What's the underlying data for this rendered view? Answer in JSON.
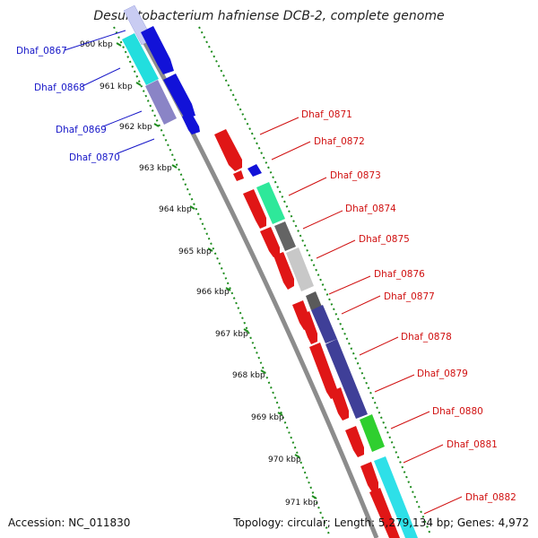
{
  "title": "Desulfitobacterium hafniense DCB-2, complete genome",
  "footer": {
    "accession": "Accession: NC_011830",
    "summary": "Topology: circular; Length: 5,279,134 bp; Genes: 4,972"
  },
  "colors": {
    "backbone": "#8c8c8c",
    "tick": "#1e8c1e",
    "forward_label": "#1616c8",
    "reverse_label": "#d01010"
  },
  "ticks": [
    "960 kbp",
    "961 kbp",
    "962 kbp",
    "963 kbp",
    "964 kbp",
    "965 kbp",
    "966 kbp",
    "967 kbp",
    "968 kbp",
    "969 kbp",
    "970 kbp",
    "971 kbp"
  ],
  "genes": [
    {
      "name": "Dhaf_0867",
      "strand": "forward"
    },
    {
      "name": "Dhaf_0868",
      "strand": "forward"
    },
    {
      "name": "Dhaf_0869",
      "strand": "forward"
    },
    {
      "name": "Dhaf_0870",
      "strand": "forward"
    },
    {
      "name": "Dhaf_0871",
      "strand": "reverse"
    },
    {
      "name": "Dhaf_0872",
      "strand": "reverse"
    },
    {
      "name": "Dhaf_0873",
      "strand": "reverse"
    },
    {
      "name": "Dhaf_0874",
      "strand": "reverse"
    },
    {
      "name": "Dhaf_0875",
      "strand": "reverse"
    },
    {
      "name": "Dhaf_0876",
      "strand": "reverse"
    },
    {
      "name": "Dhaf_0877",
      "strand": "reverse"
    },
    {
      "name": "Dhaf_0878",
      "strand": "reverse"
    },
    {
      "name": "Dhaf_0879",
      "strand": "reverse"
    },
    {
      "name": "Dhaf_0880",
      "strand": "reverse"
    },
    {
      "name": "Dhaf_0881",
      "strand": "reverse"
    },
    {
      "name": "Dhaf_0882",
      "strand": "reverse"
    }
  ]
}
